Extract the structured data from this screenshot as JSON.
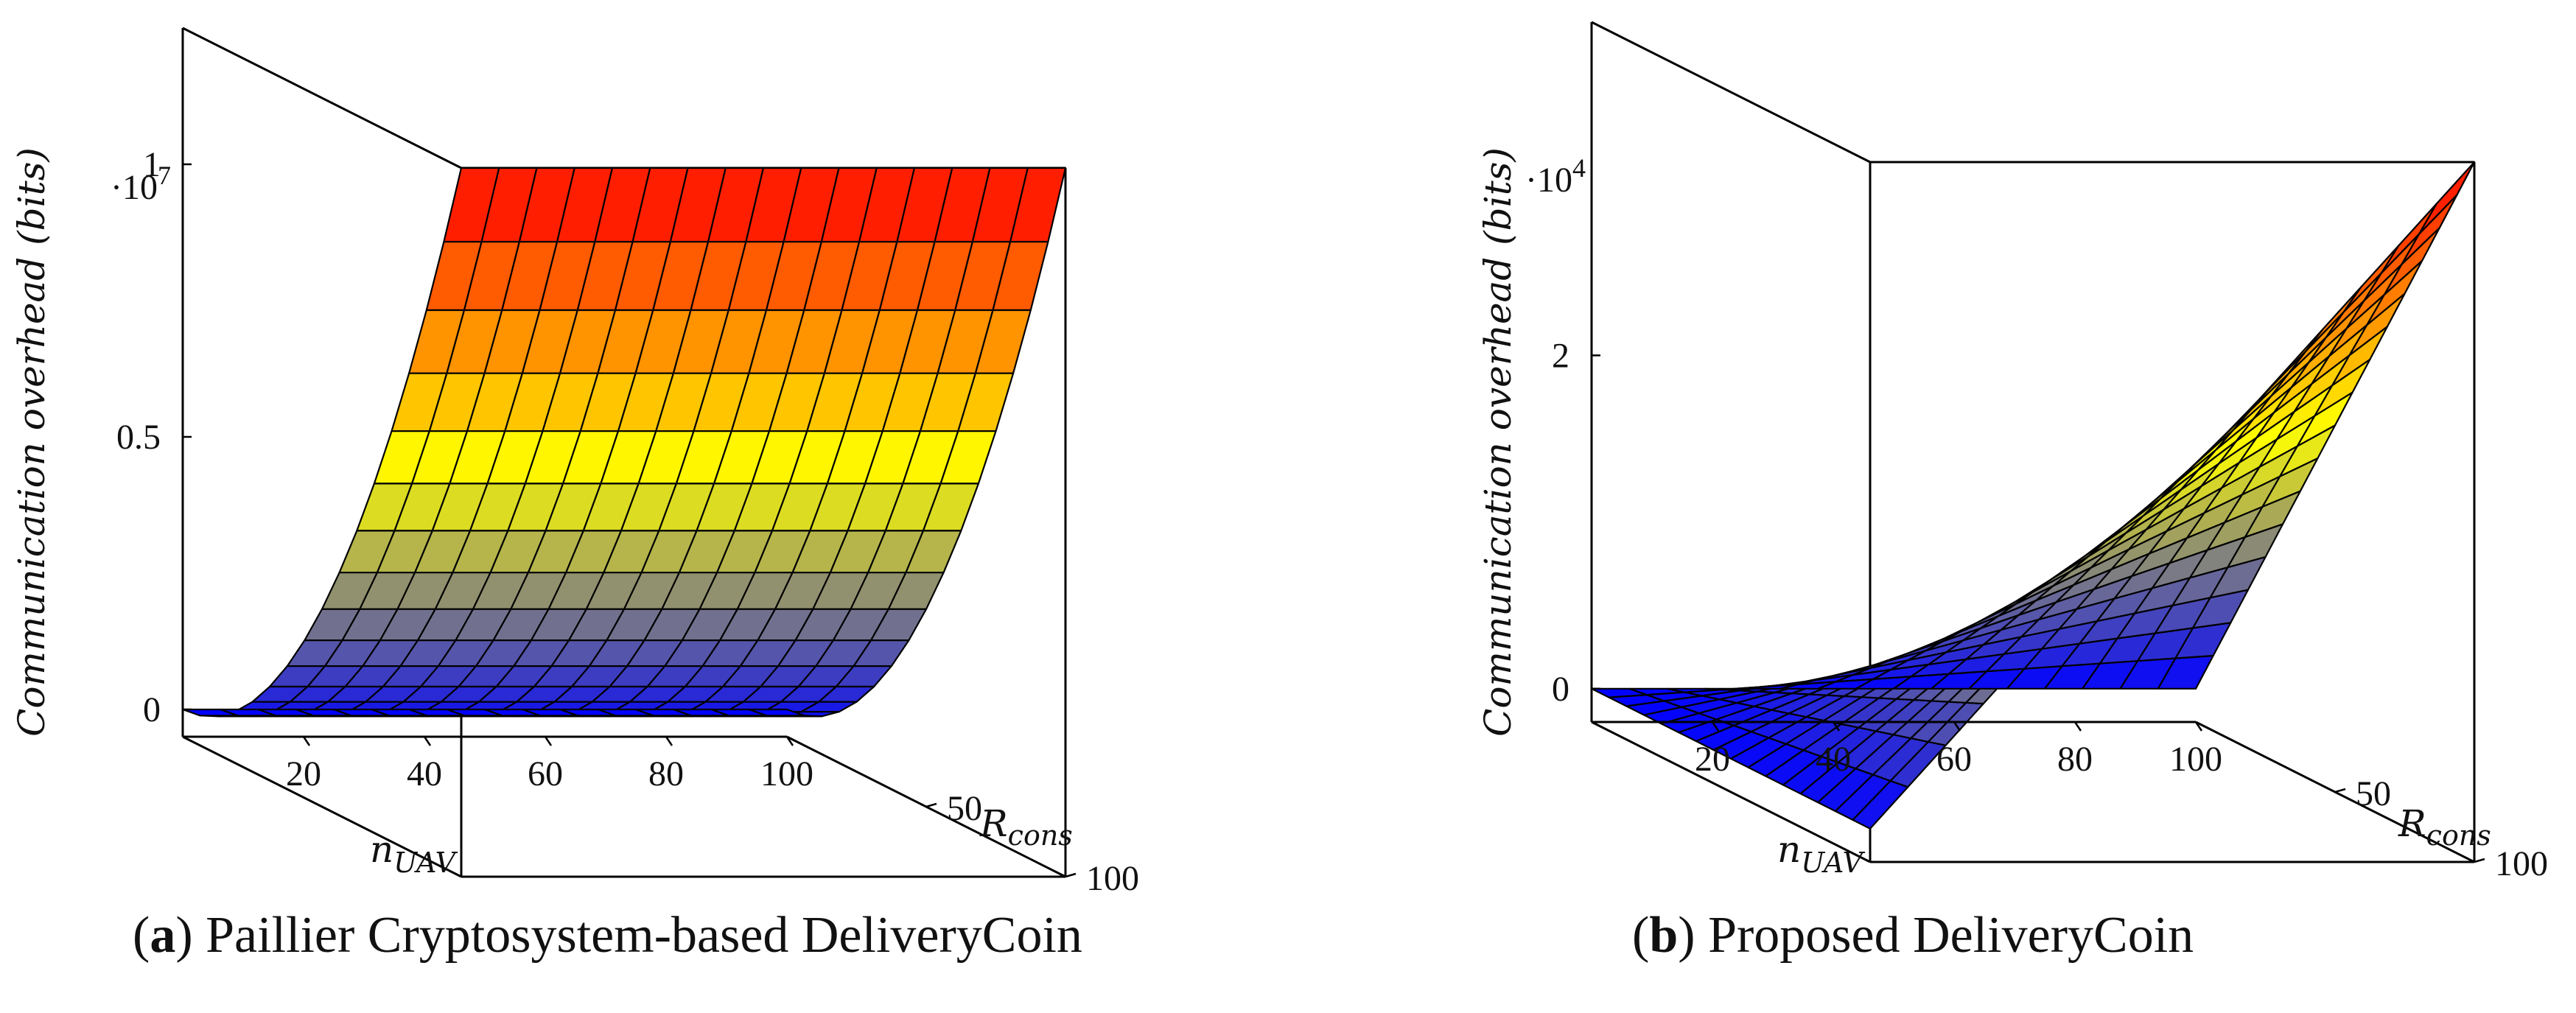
{
  "chart_data": [
    {
      "type": "surface3d",
      "panel_letter": "a",
      "caption": "Paillier Cryptosystem-based DeliveryCoin",
      "xlabel": "n",
      "xlabel_sub": "UAV",
      "ylabel": "R",
      "ylabel_sub": "cons",
      "zlabel_main": "Communication overhead ",
      "zlabel_unit": "(bits)",
      "z_exponent_prefix": "·10",
      "z_exponent": "7",
      "x_range": [
        0,
        100
      ],
      "y_range": [
        0,
        100
      ],
      "z_range": [
        -0.05,
        1.25
      ],
      "x_ticks": [
        "20",
        "40",
        "60",
        "80",
        "100"
      ],
      "x_tick_values": [
        20,
        40,
        60,
        80,
        100
      ],
      "y_ticks": [
        "50",
        "100"
      ],
      "y_tick_values": [
        50,
        100
      ],
      "z_ticks": [
        "0",
        "0.5",
        "1"
      ],
      "z_tick_values": [
        0,
        0.5,
        1
      ],
      "z_max": 1.25,
      "grid_size": 16,
      "surface": "z = z_max * (R_cons/100)^2 (nearly independent of n_UAV)"
    },
    {
      "type": "surface3d",
      "panel_letter": "b",
      "caption": "Proposed DeliveryCoin",
      "xlabel": "n",
      "xlabel_sub": "UAV",
      "ylabel": "R",
      "ylabel_sub": "cons",
      "zlabel_main": "Communication overhead ",
      "zlabel_unit": "(bits)",
      "z_exponent_prefix": "·10",
      "z_exponent": "4",
      "x_range": [
        0,
        100
      ],
      "y_range": [
        0,
        100
      ],
      "z_range": [
        -0.2,
        4.0
      ],
      "x_ticks": [
        "20",
        "40",
        "60",
        "80",
        "100"
      ],
      "x_tick_values": [
        20,
        40,
        60,
        80,
        100
      ],
      "y_ticks": [
        "50",
        "100"
      ],
      "y_tick_values": [
        50,
        100
      ],
      "z_ticks": [
        "0",
        "2"
      ],
      "z_tick_values": [
        0,
        2
      ],
      "z_max": 4.0,
      "grid_size": 16,
      "surface": "z = z_max * (n_UAV/100) * (R_cons/100)"
    }
  ],
  "colormap": [
    "#0000ff",
    "#808080",
    "#ffff00",
    "#ff8000",
    "#ff0000"
  ]
}
